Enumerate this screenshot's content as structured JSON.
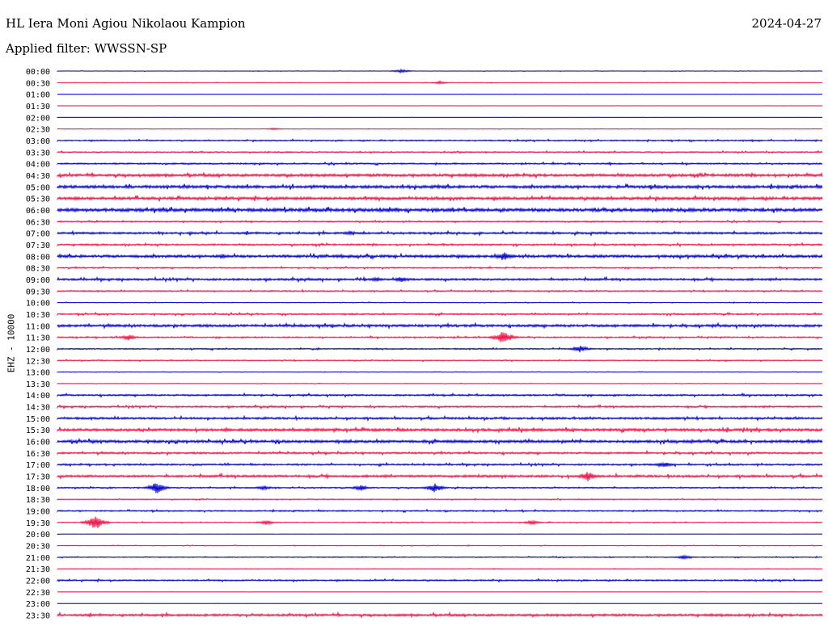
{
  "header": {
    "station": "HL Iera Moni Agiou Nikolaou Kampion",
    "date": "2024-04-27",
    "filter": "Applied filter: WWSSN-SP"
  },
  "channel_label": "EHZ - 10000",
  "colors": {
    "odd_row": "#0000cc",
    "even_row": "#ee1144",
    "text": "#000000"
  },
  "chart_data": {
    "type": "line",
    "title": "HL Iera Moni Agiou Nikolaou Kampion",
    "ylabel": "EHZ - 10000",
    "rows": [
      "00:00",
      "00:30",
      "01:00",
      "01:30",
      "02:00",
      "02:30",
      "03:00",
      "03:30",
      "04:00",
      "04:30",
      "05:00",
      "05:30",
      "06:00",
      "06:30",
      "07:00",
      "07:30",
      "08:00",
      "08:30",
      "09:00",
      "09:30",
      "10:00",
      "10:30",
      "11:00",
      "11:30",
      "12:00",
      "12:30",
      "13:00",
      "13:30",
      "14:00",
      "14:30",
      "15:00",
      "15:30",
      "16:00",
      "16:30",
      "17:00",
      "17:30",
      "18:00",
      "18:30",
      "19:00",
      "19:30",
      "20:00",
      "20:30",
      "21:00",
      "21:30",
      "22:00",
      "22:30",
      "23:00",
      "23:30"
    ],
    "row_minutes": 30,
    "noise_levels": [
      0.2,
      0.2,
      0.1,
      0.1,
      0.1,
      0.2,
      0.6,
      0.6,
      0.7,
      1.3,
      1.4,
      1.4,
      1.6,
      0.6,
      1.0,
      0.8,
      1.3,
      0.6,
      1.0,
      0.6,
      0.3,
      0.7,
      1.2,
      0.6,
      0.6,
      0.5,
      0.2,
      0.2,
      0.8,
      0.8,
      1.0,
      1.3,
      1.3,
      0.9,
      0.8,
      1.1,
      0.6,
      0.4,
      0.6,
      0.4,
      0.1,
      0.3,
      0.4,
      0.2,
      0.7,
      0.1,
      0.1,
      1.1
    ],
    "events": [
      {
        "row": 0,
        "minute": 13.5,
        "amplitude": 2.5
      },
      {
        "row": 1,
        "minute": 15.0,
        "amplitude": 2
      },
      {
        "row": 5,
        "minute": 8.5,
        "amplitude": 1.5
      },
      {
        "row": 14,
        "minute": 11.5,
        "amplitude": 3
      },
      {
        "row": 16,
        "minute": 17.5,
        "amplitude": 6
      },
      {
        "row": 16,
        "minute": 6.5,
        "amplitude": 3
      },
      {
        "row": 18,
        "minute": 13.5,
        "amplitude": 4
      },
      {
        "row": 18,
        "minute": 12.5,
        "amplitude": 3
      },
      {
        "row": 23,
        "minute": 17.5,
        "amplitude": 10
      },
      {
        "row": 23,
        "minute": 2.8,
        "amplitude": 4
      },
      {
        "row": 24,
        "minute": 20.5,
        "amplitude": 5
      },
      {
        "row": 34,
        "minute": 23.8,
        "amplitude": 4
      },
      {
        "row": 35,
        "minute": 20.8,
        "amplitude": 7
      },
      {
        "row": 36,
        "minute": 3.9,
        "amplitude": 8
      },
      {
        "row": 36,
        "minute": 11.9,
        "amplitude": 4
      },
      {
        "row": 36,
        "minute": 14.8,
        "amplitude": 6
      },
      {
        "row": 36,
        "minute": 8.1,
        "amplitude": 3
      },
      {
        "row": 39,
        "minute": 1.5,
        "amplitude": 10
      },
      {
        "row": 39,
        "minute": 18.6,
        "amplitude": 3
      },
      {
        "row": 39,
        "minute": 8.2,
        "amplitude": 3
      },
      {
        "row": 42,
        "minute": 24.6,
        "amplitude": 3
      }
    ]
  }
}
